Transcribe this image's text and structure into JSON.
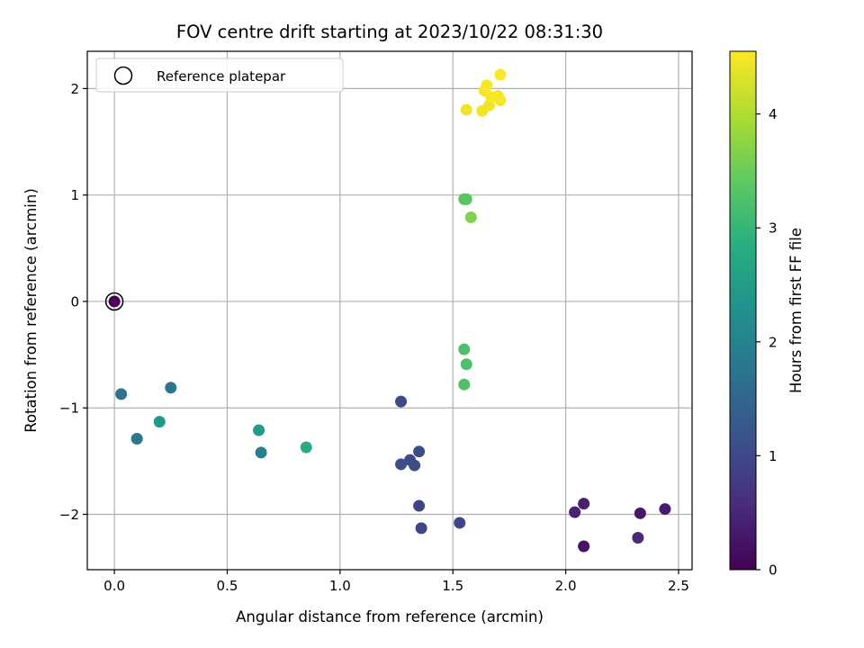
{
  "chart_data": {
    "type": "scatter",
    "title": "FOV centre drift starting at 2023/10/22 08:31:30",
    "xlabel": "Angular distance from reference (arcmin)",
    "ylabel": "Rotation from reference (arcmin)",
    "xlim": [
      -0.12,
      2.56
    ],
    "ylim": [
      -2.52,
      2.35
    ],
    "xticks": [
      0.0,
      0.5,
      1.0,
      1.5,
      2.0,
      2.5
    ],
    "xtick_labels": [
      "0.0",
      "0.5",
      "1.0",
      "1.5",
      "2.0",
      "2.5"
    ],
    "yticks": [
      -2,
      -1,
      0,
      1,
      2
    ],
    "ytick_labels": [
      "−2",
      "−1",
      "0",
      "1",
      "2"
    ],
    "grid": true,
    "legend": {
      "placement": "top-left",
      "entries": [
        "Reference platepar"
      ]
    },
    "reference_point": {
      "x": 0.0,
      "y": 0.0,
      "hours": 0.0
    },
    "colorbar": {
      "label": "Hours from first FF file",
      "range": [
        0,
        4.55
      ],
      "ticks": [
        0,
        1,
        2,
        3,
        4
      ],
      "tick_labels": [
        "0",
        "1",
        "2",
        "3",
        "4"
      ],
      "colormap": "viridis"
    },
    "points": [
      {
        "x": 0.0,
        "y": 0.0,
        "hours": 0.0
      },
      {
        "x": 2.33,
        "y": -1.99,
        "hours": 0.3
      },
      {
        "x": 2.44,
        "y": -1.95,
        "hours": 0.35
      },
      {
        "x": 2.08,
        "y": -1.9,
        "hours": 0.4
      },
      {
        "x": 2.04,
        "y": -1.98,
        "hours": 0.45
      },
      {
        "x": 2.08,
        "y": -2.3,
        "hours": 0.25
      },
      {
        "x": 2.32,
        "y": -2.22,
        "hours": 0.5
      },
      {
        "x": 1.53,
        "y": -2.08,
        "hours": 0.95
      },
      {
        "x": 1.36,
        "y": -2.13,
        "hours": 0.95
      },
      {
        "x": 1.35,
        "y": -1.92,
        "hours": 0.95
      },
      {
        "x": 1.27,
        "y": -0.94,
        "hours": 1.05
      },
      {
        "x": 1.35,
        "y": -1.41,
        "hours": 1.05
      },
      {
        "x": 1.31,
        "y": -1.49,
        "hours": 1.05
      },
      {
        "x": 1.33,
        "y": -1.54,
        "hours": 1.05
      },
      {
        "x": 1.27,
        "y": -1.53,
        "hours": 1.1
      },
      {
        "x": 0.03,
        "y": -0.87,
        "hours": 1.75
      },
      {
        "x": 0.25,
        "y": -0.81,
        "hours": 1.75
      },
      {
        "x": 0.1,
        "y": -1.29,
        "hours": 1.8
      },
      {
        "x": 0.65,
        "y": -1.42,
        "hours": 1.95
      },
      {
        "x": 0.2,
        "y": -1.13,
        "hours": 2.45
      },
      {
        "x": 0.64,
        "y": -1.21,
        "hours": 2.5
      },
      {
        "x": 0.85,
        "y": -1.37,
        "hours": 2.8
      },
      {
        "x": 1.55,
        "y": -0.45,
        "hours": 3.25
      },
      {
        "x": 1.56,
        "y": -0.59,
        "hours": 3.25
      },
      {
        "x": 1.55,
        "y": -0.78,
        "hours": 3.25
      },
      {
        "x": 1.55,
        "y": 0.96,
        "hours": 3.35
      },
      {
        "x": 1.56,
        "y": 0.96,
        "hours": 3.35
      },
      {
        "x": 1.58,
        "y": 0.79,
        "hours": 3.7
      },
      {
        "x": 1.56,
        "y": 1.8,
        "hours": 4.45
      },
      {
        "x": 1.63,
        "y": 1.79,
        "hours": 4.45
      },
      {
        "x": 1.66,
        "y": 1.84,
        "hours": 4.45
      },
      {
        "x": 1.64,
        "y": 1.98,
        "hours": 4.5
      },
      {
        "x": 1.65,
        "y": 2.03,
        "hours": 4.5
      },
      {
        "x": 1.67,
        "y": 1.92,
        "hours": 4.5
      },
      {
        "x": 1.7,
        "y": 1.93,
        "hours": 4.5
      },
      {
        "x": 1.71,
        "y": 1.89,
        "hours": 4.5
      },
      {
        "x": 1.71,
        "y": 2.13,
        "hours": 4.55
      }
    ]
  }
}
